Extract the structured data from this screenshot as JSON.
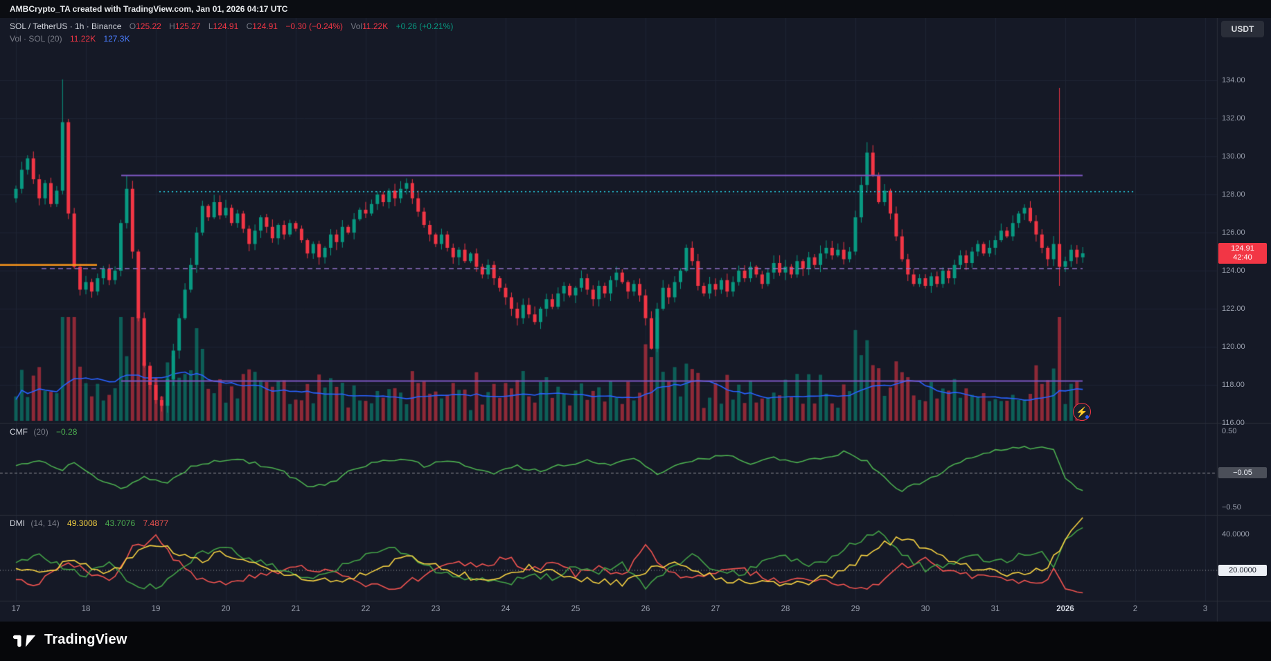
{
  "attribution": {
    "text": "AMBCrypto_TA created with TradingView.com, Jan 01, 2026 04:17 UTC"
  },
  "toolbar": {
    "currency_button": "USDT"
  },
  "legend": {
    "row1": {
      "title": "SOL / TetherUS · 1h · Binance",
      "o_label": "O",
      "o": "125.22",
      "h_label": "H",
      "h": "125.27",
      "l_label": "L",
      "l": "124.91",
      "c_label": "C",
      "c": "124.91",
      "change": "−0.30 (−0.24%)",
      "vol_label": "Vol",
      "vol": "11.22K",
      "vol_change": "+0.26 (+0.21%)"
    },
    "row2": {
      "title": "Vol · SOL (20)",
      "value1": "11.22K",
      "value2": "127.3K"
    }
  },
  "price_scale": {
    "ticks": [
      "134.00",
      "132.00",
      "130.00",
      "128.00",
      "126.00",
      "124.00",
      "122.00",
      "120.00",
      "118.00",
      "116.00"
    ],
    "last_price": "124.91",
    "countdown": "42:40"
  },
  "cmf_pane": {
    "title": "CMF",
    "params": "(20)",
    "value": "−0.28",
    "tick_top": "0.50",
    "tick_level": "−0.05",
    "tick_bottom": "−0.50"
  },
  "dmi_pane": {
    "title": "DMI",
    "params": "(14, 14)",
    "adx": "49.3008",
    "plus_di": "43.7076",
    "minus_di": "7.4877",
    "tick_top": "40.0000",
    "tick_level": "20.0000"
  },
  "time_axis": {
    "labels": [
      "17",
      "18",
      "19",
      "20",
      "21",
      "22",
      "23",
      "24",
      "25",
      "26",
      "27",
      "28",
      "29",
      "30",
      "31",
      "2026",
      "2",
      "3"
    ],
    "highlight": "2026"
  },
  "footer": {
    "brand": "TradingView"
  },
  "colors": {
    "bg": "#151926",
    "grid": "#1e2434",
    "separator": "#2a2e39",
    "up": "#089981",
    "down": "#f23645",
    "purple": "#7e57c2",
    "purple_dashed": "#9575cd",
    "teal_dotted": "#26c6da",
    "orange": "#f7931a",
    "volume_ma": "#2962ff",
    "cmf_line": "#4caf50",
    "adx": "#f5d142",
    "plus_di": "#43a047",
    "minus_di": "#ef5350",
    "axis_text": "#9aa0ae",
    "level_line": "#d8dbe3"
  },
  "chart_data": {
    "type": "candlestick",
    "title": "SOL / TetherUS · 1h · Binance",
    "x_domain": "Dec 17 – Jan 3, hourly bars (series stored at 2h resolution)",
    "ylim": [
      115.5,
      137.5
    ],
    "step_hours": 2,
    "first_open": 127.8,
    "closes": [
      128.3,
      129.3,
      129.9,
      128.8,
      127.8,
      128.6,
      127.5,
      128.2,
      131.8,
      127.0,
      124.2,
      123.0,
      123.4,
      122.9,
      123.6,
      124.1,
      123.5,
      124.0,
      126.5,
      128.3,
      125.0,
      121.5,
      119.0,
      118.0,
      117.2,
      116.9,
      118.3,
      119.8,
      121.5,
      123.0,
      124.3,
      126.0,
      127.4,
      126.8,
      127.6,
      126.9,
      127.3,
      126.5,
      127.0,
      126.2,
      125.4,
      126.1,
      126.8,
      126.3,
      125.7,
      126.4,
      125.9,
      126.5,
      126.2,
      125.6,
      124.9,
      125.4,
      124.7,
      125.2,
      125.9,
      125.5,
      126.3,
      126.0,
      126.7,
      127.2,
      127.0,
      127.5,
      128.0,
      127.6,
      128.2,
      127.8,
      128.3,
      128.6,
      127.8,
      127.1,
      126.4,
      125.9,
      125.4,
      125.9,
      125.2,
      124.7,
      125.1,
      124.5,
      124.9,
      124.2,
      123.8,
      124.3,
      123.6,
      123.1,
      122.6,
      122.0,
      121.5,
      122.2,
      121.7,
      121.3,
      122.0,
      122.5,
      122.1,
      122.8,
      123.2,
      122.7,
      123.1,
      123.6,
      123.0,
      122.5,
      123.2,
      122.8,
      123.5,
      123.9,
      123.4,
      122.9,
      123.3,
      122.7,
      121.5,
      119.9,
      122.0,
      123.1,
      122.6,
      123.4,
      124.0,
      125.2,
      124.5,
      123.2,
      122.8,
      123.3,
      123.0,
      123.5,
      122.9,
      123.4,
      124.0,
      123.6,
      124.2,
      123.8,
      123.3,
      123.9,
      124.4,
      123.9,
      124.2,
      123.8,
      124.5,
      124.1,
      124.7,
      124.3,
      124.9,
      125.2,
      124.8,
      125.1,
      124.6,
      125.0,
      126.8,
      128.5,
      130.2,
      129.0,
      127.6,
      128.2,
      127.0,
      125.8,
      124.6,
      123.8,
      123.3,
      123.6,
      123.2,
      123.7,
      123.3,
      124.0,
      123.6,
      124.3,
      124.8,
      124.4,
      125.0,
      125.4,
      124.9,
      125.2,
      125.6,
      126.1,
      125.8,
      126.5,
      127.0,
      127.3,
      126.6,
      125.9,
      125.2,
      124.6,
      125.4,
      124.2,
      124.5,
      125.1,
      124.7,
      124.91
    ],
    "wick_overrides": {
      "8": {
        "h": 134.05
      },
      "19": {
        "h": 129.0
      },
      "25": {
        "l": 116.6
      },
      "109": {
        "l": 119.85
      },
      "146": {
        "h": 130.75
      },
      "179": {
        "h": 133.6,
        "l": 123.2
      }
    },
    "levels": {
      "resistance": 129.0,
      "support": 118.2,
      "mid_dashed": 124.1,
      "dotted": 128.15,
      "orange_left": 124.3
    },
    "volume": {
      "last": "11.22K",
      "ma20": "127.3K",
      "spike_index": 179
    },
    "indicators": {
      "cmf": {
        "period": 20,
        "last": -0.28,
        "range": [
          -0.5,
          0.5
        ],
        "level": -0.05,
        "waypoints": [
          [
            0,
            0.05
          ],
          [
            4,
            0.12
          ],
          [
            8,
            -0.02
          ],
          [
            10,
            0.1
          ],
          [
            14,
            -0.12
          ],
          [
            18,
            -0.25
          ],
          [
            22,
            -0.1
          ],
          [
            26,
            -0.18
          ],
          [
            30,
            0.02
          ],
          [
            34,
            0.1
          ],
          [
            38,
            0.15
          ],
          [
            42,
            0.05
          ],
          [
            46,
            -0.05
          ],
          [
            50,
            -0.22
          ],
          [
            54,
            -0.18
          ],
          [
            58,
            0.0
          ],
          [
            62,
            0.1
          ],
          [
            66,
            0.14
          ],
          [
            70,
            0.05
          ],
          [
            74,
            0.12
          ],
          [
            78,
            0.02
          ],
          [
            82,
            -0.06
          ],
          [
            86,
            0.04
          ],
          [
            90,
            -0.04
          ],
          [
            94,
            0.06
          ],
          [
            98,
            0.12
          ],
          [
            102,
            0.05
          ],
          [
            106,
            0.15
          ],
          [
            110,
            -0.06
          ],
          [
            114,
            0.08
          ],
          [
            118,
            0.14
          ],
          [
            122,
            0.18
          ],
          [
            126,
            0.08
          ],
          [
            130,
            0.14
          ],
          [
            134,
            0.1
          ],
          [
            138,
            0.16
          ],
          [
            142,
            0.22
          ],
          [
            146,
            0.1
          ],
          [
            150,
            -0.18
          ],
          [
            152,
            -0.28
          ],
          [
            154,
            -0.2
          ],
          [
            158,
            -0.1
          ],
          [
            160,
            0.05
          ],
          [
            164,
            0.15
          ],
          [
            168,
            0.25
          ],
          [
            172,
            0.28
          ],
          [
            176,
            0.3
          ],
          [
            178,
            0.25
          ],
          [
            180,
            -0.1
          ],
          [
            182,
            -0.25
          ],
          [
            183,
            -0.28
          ]
        ]
      },
      "dmi": {
        "periods": [
          14,
          14
        ],
        "level": 20,
        "adx_last": 49.3008,
        "plus_di_last": 43.7076,
        "minus_di_last": 7.4877,
        "adx": [
          [
            0,
            22
          ],
          [
            6,
            20
          ],
          [
            9,
            26
          ],
          [
            12,
            22
          ],
          [
            16,
            18
          ],
          [
            20,
            28
          ],
          [
            24,
            34
          ],
          [
            28,
            30
          ],
          [
            32,
            26
          ],
          [
            36,
            30
          ],
          [
            40,
            24
          ],
          [
            44,
            20
          ],
          [
            48,
            17
          ],
          [
            52,
            15
          ],
          [
            56,
            14
          ],
          [
            60,
            18
          ],
          [
            64,
            24
          ],
          [
            68,
            27
          ],
          [
            72,
            22
          ],
          [
            76,
            18
          ],
          [
            80,
            15
          ],
          [
            84,
            18
          ],
          [
            88,
            22
          ],
          [
            92,
            19
          ],
          [
            96,
            16
          ],
          [
            100,
            14
          ],
          [
            104,
            13
          ],
          [
            108,
            20
          ],
          [
            112,
            24
          ],
          [
            116,
            20
          ],
          [
            120,
            16
          ],
          [
            124,
            14
          ],
          [
            128,
            13
          ],
          [
            132,
            12
          ],
          [
            136,
            14
          ],
          [
            140,
            16
          ],
          [
            144,
            24
          ],
          [
            148,
            34
          ],
          [
            152,
            38
          ],
          [
            156,
            32
          ],
          [
            160,
            26
          ],
          [
            164,
            22
          ],
          [
            168,
            19
          ],
          [
            172,
            17
          ],
          [
            176,
            20
          ],
          [
            179,
            30
          ],
          [
            181,
            42
          ],
          [
            183,
            49.3
          ]
        ],
        "plus_di": [
          [
            0,
            25
          ],
          [
            4,
            30
          ],
          [
            8,
            22
          ],
          [
            12,
            18
          ],
          [
            16,
            24
          ],
          [
            20,
            12
          ],
          [
            24,
            10
          ],
          [
            28,
            20
          ],
          [
            32,
            30
          ],
          [
            36,
            34
          ],
          [
            40,
            26
          ],
          [
            44,
            22
          ],
          [
            48,
            18
          ],
          [
            52,
            16
          ],
          [
            56,
            22
          ],
          [
            60,
            28
          ],
          [
            64,
            33
          ],
          [
            68,
            26
          ],
          [
            72,
            20
          ],
          [
            76,
            16
          ],
          [
            80,
            14
          ],
          [
            84,
            12
          ],
          [
            88,
            18
          ],
          [
            92,
            16
          ],
          [
            96,
            22
          ],
          [
            100,
            18
          ],
          [
            104,
            24
          ],
          [
            108,
            10
          ],
          [
            112,
            22
          ],
          [
            116,
            28
          ],
          [
            120,
            20
          ],
          [
            124,
            18
          ],
          [
            128,
            24
          ],
          [
            132,
            28
          ],
          [
            136,
            24
          ],
          [
            140,
            26
          ],
          [
            144,
            36
          ],
          [
            148,
            40
          ],
          [
            152,
            30
          ],
          [
            156,
            20
          ],
          [
            160,
            24
          ],
          [
            164,
            28
          ],
          [
            168,
            24
          ],
          [
            172,
            28
          ],
          [
            176,
            30
          ],
          [
            178,
            22
          ],
          [
            180,
            36
          ],
          [
            182,
            42
          ],
          [
            183,
            43.7
          ]
        ],
        "minus_di": [
          [
            0,
            16
          ],
          [
            4,
            12
          ],
          [
            8,
            24
          ],
          [
            12,
            20
          ],
          [
            16,
            14
          ],
          [
            20,
            32
          ],
          [
            24,
            38
          ],
          [
            28,
            24
          ],
          [
            32,
            14
          ],
          [
            36,
            12
          ],
          [
            40,
            16
          ],
          [
            44,
            18
          ],
          [
            48,
            22
          ],
          [
            52,
            20
          ],
          [
            56,
            16
          ],
          [
            60,
            12
          ],
          [
            64,
            10
          ],
          [
            68,
            14
          ],
          [
            72,
            20
          ],
          [
            76,
            24
          ],
          [
            80,
            22
          ],
          [
            84,
            28
          ],
          [
            88,
            20
          ],
          [
            92,
            24
          ],
          [
            96,
            18
          ],
          [
            100,
            22
          ],
          [
            104,
            16
          ],
          [
            108,
            34
          ],
          [
            112,
            18
          ],
          [
            116,
            14
          ],
          [
            120,
            20
          ],
          [
            124,
            22
          ],
          [
            128,
            16
          ],
          [
            132,
            14
          ],
          [
            136,
            16
          ],
          [
            140,
            14
          ],
          [
            144,
            10
          ],
          [
            148,
            12
          ],
          [
            152,
            22
          ],
          [
            156,
            26
          ],
          [
            160,
            20
          ],
          [
            164,
            16
          ],
          [
            168,
            18
          ],
          [
            172,
            14
          ],
          [
            176,
            12
          ],
          [
            178,
            20
          ],
          [
            180,
            10
          ],
          [
            182,
            8
          ],
          [
            183,
            7.5
          ]
        ]
      }
    }
  }
}
